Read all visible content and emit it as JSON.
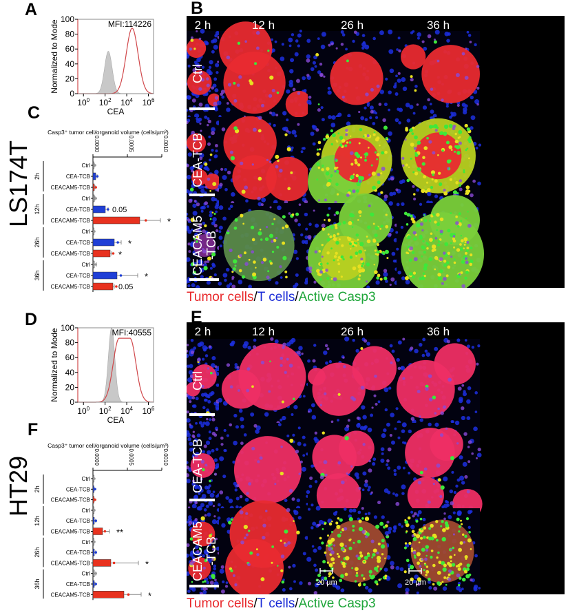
{
  "cell_lines": [
    "LS174T",
    "HT29"
  ],
  "panel_labels": {
    "A": "A",
    "B": "B",
    "C": "C",
    "D": "D",
    "E": "E",
    "F": "F"
  },
  "microscopy": {
    "timepoints": [
      "2 h",
      "12 h",
      "26 h",
      "36 h"
    ],
    "conditions": [
      "Ctrl",
      "CEA-TCB",
      "CEACAM5\n-TCB"
    ],
    "legend": {
      "tumor": "Tumor cells",
      "sep1": "/",
      "tcells": "T cells",
      "sep2": "/",
      "casp3": "Active Casp3"
    },
    "scale_bar_label": "20 µm",
    "channel_colors": {
      "tumor": "#e8272a",
      "tcells": "#1a2bd6",
      "casp3": "#1fa63a"
    }
  },
  "chart_data": [
    {
      "panel": "A",
      "type": "line",
      "chart": "histogram",
      "xlabel": "CEA",
      "ylabel": "Normalized to Mode",
      "annotation": "MFI:114226",
      "x_scale": "log",
      "xlim": [
        0.3,
        3000000
      ],
      "ylim": [
        0,
        100
      ],
      "xticks": [
        "10^0",
        "10^2",
        "10^4",
        "10^6"
      ],
      "yticks": [
        "0",
        "20",
        "40",
        "60",
        "80",
        "100"
      ],
      "series": [
        {
          "fill": "#c8c8c8",
          "peak_log10": 2.3,
          "peak": 57,
          "width": 0.35
        },
        {
          "stroke": "#d0474a",
          "peak_log10": 4.5,
          "peak": 88,
          "width": 0.55
        }
      ]
    },
    {
      "panel": "D",
      "type": "line",
      "chart": "histogram",
      "xlabel": "CEA",
      "ylabel": "Normalized to Mode",
      "annotation": "MFI:40555",
      "x_scale": "log",
      "xlim": [
        0.3,
        3000000
      ],
      "ylim": [
        0,
        100
      ],
      "xticks": [
        "10^0",
        "10^2",
        "10^4",
        "10^6"
      ],
      "yticks": [
        "0",
        "20",
        "40",
        "60",
        "80",
        "100"
      ],
      "series": [
        {
          "fill": "#c8c8c8",
          "peak_log10": 2.6,
          "peak": 100,
          "width": 0.3
        },
        {
          "stroke": "#d0474a",
          "peak_log10": 3.8,
          "peak": 86,
          "width": 0.55,
          "plateau": 0.5
        }
      ]
    },
    {
      "panel": "C",
      "type": "bar",
      "orientation": "horizontal",
      "title": "Casp3⁺ tumor cell/organoid volume (cells/µm³)",
      "xlim": [
        0,
        0.001
      ],
      "xticks": [
        "0.0000",
        "0.0005",
        "0.0010"
      ],
      "groups": [
        "2h",
        "12h",
        "26h",
        "36h"
      ],
      "categories": [
        "Ctrl",
        "CEA-TCB",
        "CEACAM5-TCB"
      ],
      "colors": [
        "#9a9a9a",
        "#1f3fd6",
        "#e8321f"
      ],
      "values": [
        [
          1e-05,
          4e-05,
          2e-05
        ],
        [
          2e-05,
          0.00018,
          0.00068
        ],
        [
          0.0,
          0.00031,
          0.00025
        ],
        [
          2e-05,
          0.00035,
          0.00029
        ]
      ],
      "errors": [
        [
          1e-05,
          2e-05,
          1e-05
        ],
        [
          1e-05,
          4e-05,
          0.0003
        ],
        [
          0.0,
          0.0001,
          2e-05
        ],
        [
          3e-05,
          0.0003,
          2e-05
        ]
      ],
      "annotations": [
        [
          "",
          "",
          ""
        ],
        [
          "",
          "0.05",
          "*"
        ],
        [
          "",
          "*",
          "*"
        ],
        [
          "",
          "*",
          "0.05"
        ]
      ]
    },
    {
      "panel": "F",
      "type": "bar",
      "orientation": "horizontal",
      "title": "Casp3⁺ tumor cell/organoid volume (cells/µm³)",
      "xlim": [
        0,
        0.001
      ],
      "xticks": [
        "0.0000",
        "0.0005",
        "0.0010"
      ],
      "groups": [
        "2h",
        "12h",
        "26h",
        "36h"
      ],
      "categories": [
        "Ctrl",
        "CEA-TCB",
        "CEACAM5-TCB"
      ],
      "colors": [
        "#9a9a9a",
        "#1f3fd6",
        "#e8321f"
      ],
      "values": [
        [
          0.0,
          1e-05,
          1e-05
        ],
        [
          0.0,
          2e-05,
          0.00014
        ],
        [
          0.0,
          2e-05,
          0.00026
        ],
        [
          2e-05,
          2e-05,
          0.00045
        ]
      ],
      "errors": [
        [
          0.0,
          1e-05,
          1e-05
        ],
        [
          0.0,
          2e-05,
          0.0001
        ],
        [
          0.0,
          2e-05,
          0.0004
        ],
        [
          2e-05,
          1e-05,
          0.00025
        ]
      ],
      "annotations": [
        [
          "",
          "",
          ""
        ],
        [
          "",
          "",
          "**"
        ],
        [
          "",
          "",
          "*"
        ],
        [
          "",
          "",
          "*"
        ]
      ]
    }
  ]
}
